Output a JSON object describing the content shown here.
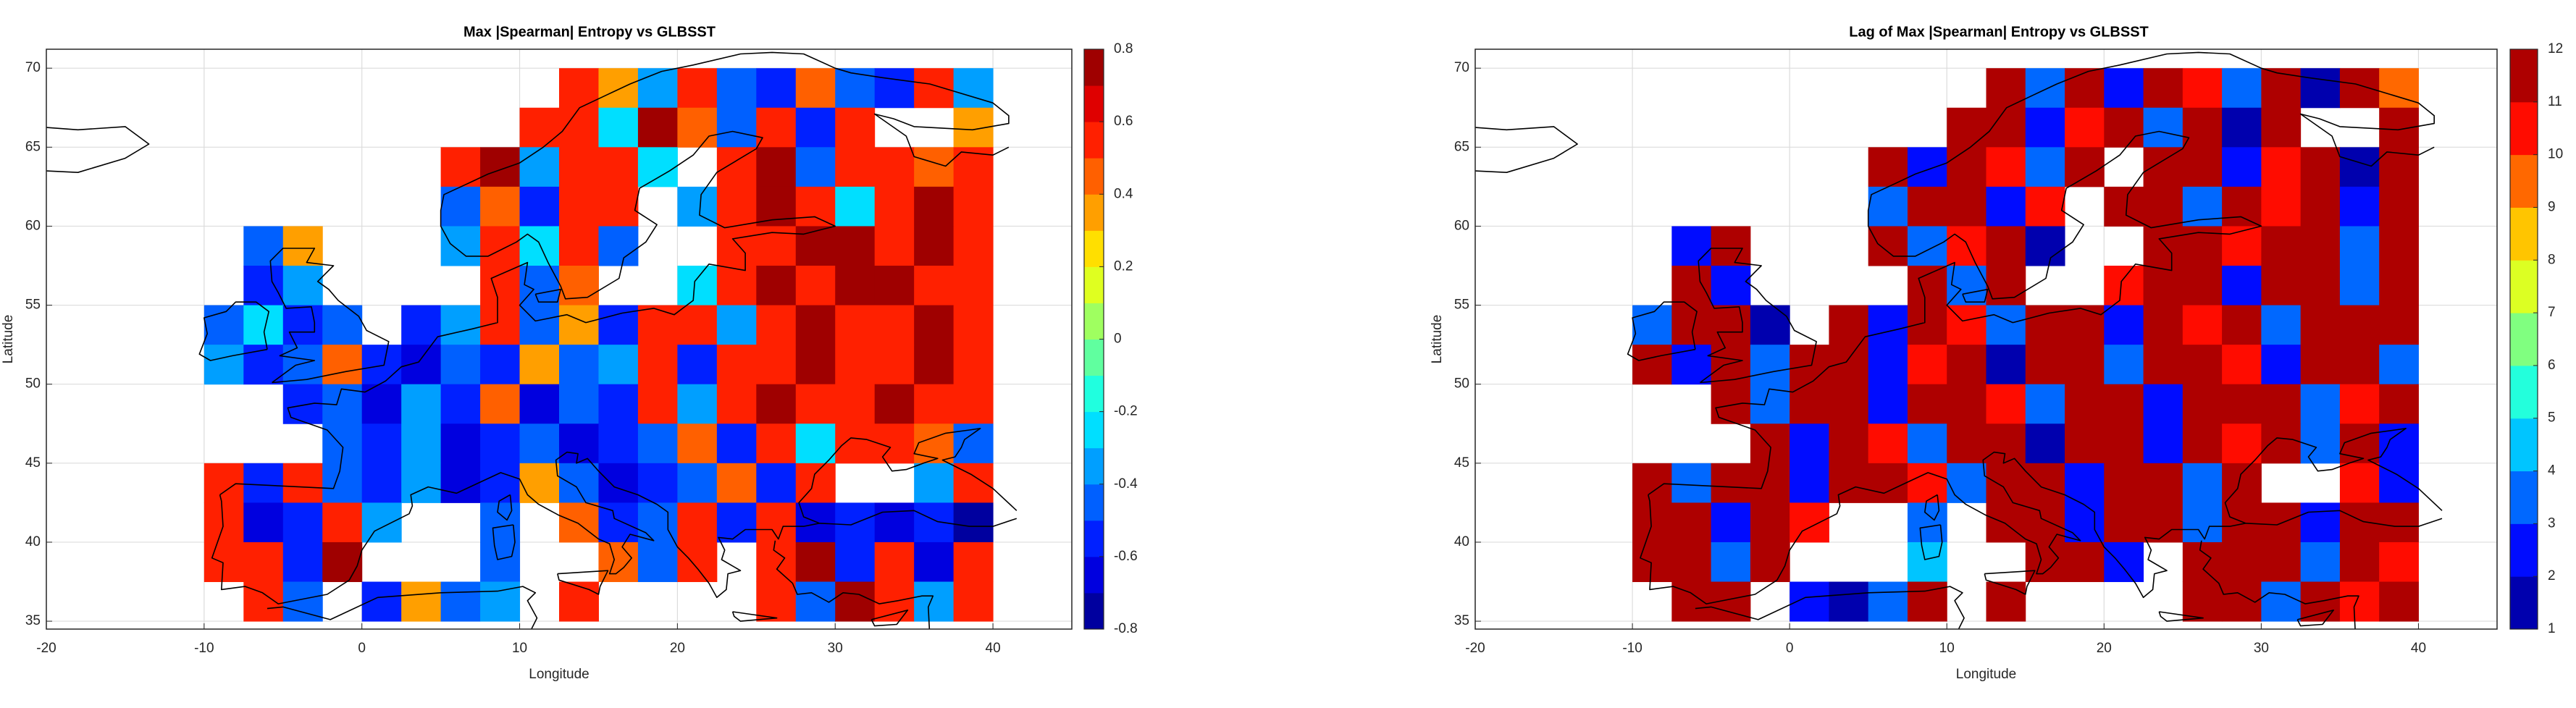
{
  "chart_data": [
    {
      "type": "heatmap",
      "title": "Max |Spearman| Entropy vs GLBSST",
      "xlabel": "Longitude",
      "ylabel": "Latitude",
      "x": [
        -8.75,
        -6.25,
        -3.75,
        -1.25,
        1.25,
        3.75,
        6.25,
        8.75,
        11.25,
        13.75,
        16.25,
        18.75,
        21.25,
        23.75,
        26.25,
        28.75,
        31.25,
        33.75,
        36.25,
        38.75
      ],
      "y": [
        68.75,
        66.25,
        63.75,
        61.25,
        58.75,
        56.25,
        53.75,
        51.25,
        48.75,
        46.25,
        43.75,
        41.25,
        38.75,
        36.25
      ],
      "z": [
        [
          null,
          null,
          null,
          null,
          null,
          null,
          null,
          null,
          null,
          0.5,
          0.3,
          -0.4,
          0.6,
          -0.5,
          -0.6,
          0.4,
          -0.5,
          -0.6,
          0.5,
          -0.4
        ],
        [
          null,
          null,
          null,
          null,
          null,
          null,
          null,
          null,
          0.6,
          0.5,
          -0.3,
          0.7,
          0.4,
          -0.5,
          0.6,
          -0.6,
          0.5,
          null,
          null,
          0.3
        ],
        [
          null,
          null,
          null,
          null,
          null,
          null,
          0.6,
          0.7,
          -0.4,
          0.5,
          0.6,
          -0.3,
          null,
          0.6,
          0.7,
          -0.5,
          0.6,
          0.5,
          0.4,
          0.6
        ],
        [
          null,
          null,
          null,
          null,
          null,
          null,
          -0.5,
          0.4,
          -0.6,
          0.5,
          0.6,
          null,
          -0.4,
          0.6,
          0.7,
          0.5,
          -0.3,
          0.6,
          0.7,
          0.5
        ],
        [
          null,
          -0.5,
          0.3,
          null,
          null,
          null,
          -0.4,
          0.5,
          -0.3,
          0.6,
          -0.5,
          null,
          null,
          0.6,
          0.5,
          0.7,
          0.8,
          0.6,
          0.7,
          0.5
        ],
        [
          null,
          -0.6,
          -0.4,
          null,
          null,
          null,
          null,
          0.5,
          -0.5,
          0.4,
          null,
          null,
          -0.3,
          0.6,
          0.7,
          0.6,
          0.8,
          0.7,
          0.5,
          0.6
        ],
        [
          -0.5,
          -0.3,
          -0.6,
          -0.5,
          null,
          -0.6,
          -0.4,
          0.5,
          -0.5,
          0.3,
          -0.6,
          0.6,
          0.5,
          -0.4,
          0.6,
          0.7,
          0.5,
          0.6,
          0.7,
          0.5
        ],
        [
          -0.4,
          -0.6,
          -0.5,
          0.4,
          -0.6,
          -0.7,
          -0.5,
          -0.6,
          0.3,
          -0.5,
          -0.4,
          0.5,
          -0.6,
          0.6,
          0.5,
          0.7,
          0.6,
          0.5,
          0.7,
          0.6
        ],
        [
          null,
          null,
          -0.6,
          -0.5,
          -0.7,
          -0.4,
          -0.6,
          0.4,
          -0.7,
          -0.5,
          -0.6,
          0.5,
          -0.4,
          0.6,
          0.7,
          0.5,
          0.6,
          0.8,
          0.6,
          0.5
        ],
        [
          null,
          null,
          null,
          -0.5,
          -0.6,
          -0.4,
          -0.7,
          -0.6,
          -0.5,
          -0.7,
          -0.6,
          -0.5,
          0.4,
          -0.6,
          0.5,
          -0.3,
          0.6,
          0.5,
          0.4,
          -0.5
        ],
        [
          0.5,
          -0.6,
          0.6,
          -0.5,
          -0.6,
          -0.4,
          -0.7,
          -0.6,
          0.3,
          -0.5,
          -0.7,
          -0.6,
          -0.5,
          0.4,
          -0.6,
          0.5,
          null,
          null,
          -0.4,
          0.5
        ],
        [
          0.6,
          -0.7,
          -0.6,
          0.5,
          -0.4,
          null,
          null,
          -0.5,
          null,
          0.4,
          -0.6,
          -0.5,
          0.5,
          -0.6,
          0.6,
          -0.7,
          -0.6,
          -0.7,
          -0.6,
          -0.8
        ],
        [
          0.5,
          0.6,
          -0.6,
          0.7,
          null,
          null,
          null,
          -0.5,
          null,
          null,
          0.4,
          -0.5,
          0.6,
          null,
          0.5,
          0.7,
          -0.6,
          0.6,
          -0.7,
          0.5
        ],
        [
          null,
          0.6,
          -0.5,
          null,
          -0.6,
          0.3,
          -0.5,
          -0.4,
          null,
          0.5,
          null,
          null,
          null,
          null,
          0.6,
          -0.5,
          0.7,
          0.6,
          -0.4,
          0.6
        ]
      ],
      "xlim": [
        -20,
        45
      ],
      "ylim": [
        34.5,
        71.2
      ],
      "xticks": [
        -20,
        -10,
        0,
        10,
        20,
        30,
        40
      ],
      "yticks": [
        35,
        40,
        45,
        50,
        55,
        60,
        65,
        70
      ],
      "clim": [
        -0.8,
        0.8
      ],
      "cticks": [
        -0.8,
        -0.6,
        -0.4,
        -0.2,
        0,
        0.2,
        0.4,
        0.6,
        0.8
      ],
      "colormap": "jet",
      "levels": 16,
      "grid": true
    },
    {
      "type": "heatmap",
      "title": "Lag of Max |Spearman| Entropy vs GLBSST",
      "xlabel": "Longitude",
      "ylabel": "Latitude",
      "x": [
        -8.75,
        -6.25,
        -3.75,
        -1.25,
        1.25,
        3.75,
        6.25,
        8.75,
        11.25,
        13.75,
        16.25,
        18.75,
        21.25,
        23.75,
        26.25,
        28.75,
        31.25,
        33.75,
        36.25,
        38.75
      ],
      "y": [
        68.75,
        66.25,
        63.75,
        61.25,
        58.75,
        56.25,
        53.75,
        51.25,
        48.75,
        46.25,
        43.75,
        41.25,
        38.75,
        36.25
      ],
      "z": [
        [
          null,
          null,
          null,
          null,
          null,
          null,
          null,
          null,
          null,
          11,
          3,
          12,
          2,
          11,
          10,
          3,
          12,
          1,
          11,
          9
        ],
        [
          null,
          null,
          null,
          null,
          null,
          null,
          null,
          null,
          12,
          11,
          2,
          10,
          12,
          3,
          11,
          1,
          12,
          null,
          null,
          11
        ],
        [
          null,
          null,
          null,
          null,
          null,
          null,
          11,
          2,
          12,
          10,
          3,
          12,
          null,
          11,
          12,
          2,
          10,
          12,
          1,
          11
        ],
        [
          null,
          null,
          null,
          null,
          null,
          null,
          3,
          11,
          12,
          2,
          10,
          null,
          12,
          11,
          3,
          12,
          10,
          12,
          2,
          11
        ],
        [
          null,
          2,
          11,
          null,
          null,
          null,
          12,
          3,
          10,
          12,
          1,
          null,
          null,
          11,
          12,
          10,
          11,
          12,
          3,
          11
        ],
        [
          null,
          12,
          2,
          null,
          null,
          null,
          null,
          11,
          3,
          12,
          null,
          null,
          10,
          12,
          11,
          2,
          12,
          11,
          3,
          12
        ],
        [
          3,
          11,
          12,
          1,
          null,
          12,
          2,
          11,
          10,
          3,
          12,
          11,
          2,
          12,
          10,
          11,
          3,
          12,
          11,
          12
        ],
        [
          11,
          2,
          12,
          3,
          11,
          12,
          2,
          10,
          12,
          1,
          11,
          12,
          3,
          11,
          12,
          10,
          2,
          12,
          11,
          3
        ],
        [
          null,
          null,
          12,
          3,
          11,
          12,
          2,
          11,
          12,
          10,
          3,
          12,
          11,
          2,
          12,
          11,
          12,
          3,
          10,
          12
        ],
        [
          null,
          null,
          null,
          11,
          2,
          12,
          10,
          3,
          12,
          11,
          1,
          12,
          11,
          2,
          12,
          10,
          11,
          3,
          12,
          2
        ],
        [
          12,
          3,
          11,
          12,
          2,
          11,
          12,
          10,
          3,
          12,
          11,
          2,
          12,
          11,
          3,
          12,
          null,
          null,
          10,
          2
        ],
        [
          12,
          11,
          2,
          12,
          10,
          null,
          null,
          3,
          null,
          12,
          11,
          2,
          12,
          11,
          3,
          12,
          11,
          2,
          12,
          11
        ],
        [
          11,
          12,
          3,
          12,
          null,
          null,
          null,
          4,
          null,
          null,
          12,
          11,
          2,
          null,
          12,
          11,
          12,
          3,
          12,
          10
        ],
        [
          null,
          12,
          11,
          null,
          2,
          1,
          3,
          12,
          null,
          11,
          null,
          null,
          null,
          null,
          11,
          12,
          3,
          12,
          10,
          11
        ]
      ],
      "xlim": [
        -20,
        45
      ],
      "ylim": [
        34.5,
        71.2
      ],
      "xticks": [
        -20,
        -10,
        0,
        10,
        20,
        30,
        40
      ],
      "yticks": [
        35,
        40,
        45,
        50,
        55,
        60,
        65,
        70
      ],
      "clim": [
        1,
        12
      ],
      "cticks": [
        1,
        2,
        3,
        4,
        5,
        6,
        7,
        8,
        9,
        10,
        11,
        12
      ],
      "colormap": "jet",
      "levels": 11,
      "grid": true
    }
  ]
}
